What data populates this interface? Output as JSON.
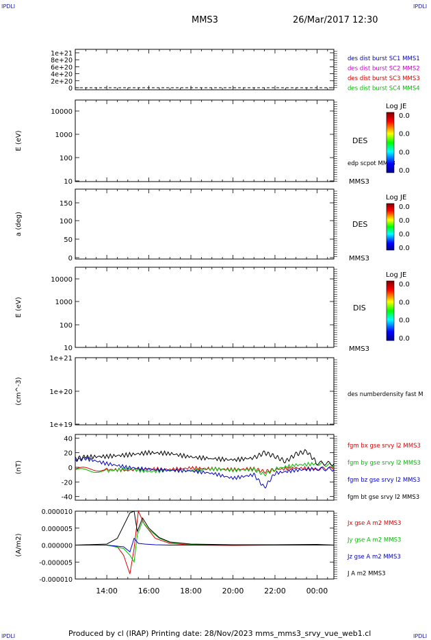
{
  "corner_label": "IPDLI",
  "header": {
    "spacecraft": "MMS3",
    "date": "26/Mar/2017 12:30"
  },
  "footer": {
    "text": "Produced by cl (IRAP)   Printing date: 28/Nov/2023   mms_mms3_srvy_vue_web1.cl"
  },
  "colors": {
    "mms1": "#0000cc",
    "mms2": "#cc00cc",
    "mms3": "#dd0000",
    "mms4": "#00bb00",
    "black": "#000000"
  },
  "colorbar_label": "Log JE",
  "colorbar_ticks": [
    "0.0",
    "0.0",
    "0.0",
    "0.0"
  ],
  "x_axis": {
    "ticks": [
      "14:00",
      "16:00",
      "18:00",
      "20:00",
      "22:00",
      "00:00"
    ]
  },
  "chart_data": [
    {
      "type": "line",
      "panel": "density-dist",
      "yticks": [
        "1e+21",
        "8e+20",
        "6e+20",
        "4e+20",
        "2e+20",
        "0"
      ],
      "legend": [
        "des dist burst SC1 MMS1",
        "des dist burst SC2 MMS2",
        "des dist burst SC3 MMS3",
        "des dist burst SC4 MMS4"
      ]
    },
    {
      "type": "heatmap",
      "panel": "des-energy",
      "ylabel": "E (eV)",
      "yticks": [
        "10000",
        "1000",
        "100",
        "10"
      ],
      "label": "DES",
      "sublabel": "MMS3",
      "overlay": "edp scpot MMS3"
    },
    {
      "type": "heatmap",
      "panel": "des-pitch",
      "ylabel": "a (deg)",
      "yticks": [
        "150",
        "100",
        "50",
        "0"
      ],
      "label": "DES",
      "sublabel": "MMS3"
    },
    {
      "type": "heatmap",
      "panel": "dis-energy",
      "ylabel": "E (eV)",
      "yticks": [
        "10000",
        "1000",
        "100",
        "10"
      ],
      "label": "DIS",
      "sublabel": "MMS3"
    },
    {
      "type": "line",
      "panel": "numberdensity",
      "ylabel": "(cm^-3)",
      "yticks": [
        "1e+21",
        "1e+20",
        "1e+19"
      ],
      "legend": [
        "des numberdensity fast M"
      ]
    },
    {
      "type": "line",
      "panel": "fgm",
      "ylabel": "(nT)",
      "yticks": [
        "40",
        "20",
        "0",
        "-20",
        "-40"
      ],
      "ylim": [
        -45,
        45
      ],
      "legend": [
        "fgm bx gse srvy l2 MMS3",
        "fgm by gse srvy l2 MMS3",
        "fgm bz gse srvy l2 MMS3",
        "fgm bt gse srvy l2 MMS3"
      ],
      "series": [
        {
          "name": "fgm bx gse srvy l2 MMS3",
          "color": "#dd0000",
          "x": [
            12.5,
            14,
            15,
            16,
            17,
            18,
            19,
            20,
            21,
            21.5,
            22,
            23,
            24,
            24.8
          ],
          "y": [
            -2,
            -3,
            -4,
            -2,
            -3,
            -1,
            -2,
            -3,
            -2,
            -6,
            -3,
            -1,
            -2,
            -1
          ]
        },
        {
          "name": "fgm by gse srvy l2 MMS3",
          "color": "#00bb00",
          "x": [
            12.5,
            14,
            15,
            16,
            17,
            18,
            19,
            20,
            21,
            21.5,
            22,
            23,
            24,
            24.8
          ],
          "y": [
            -4,
            -5,
            -2,
            -6,
            -4,
            -5,
            -2,
            -4,
            -3,
            -10,
            -2,
            3,
            5,
            2
          ]
        },
        {
          "name": "fgm bz gse srvy l2 MMS3",
          "color": "#0000cc",
          "x": [
            12.5,
            13,
            14,
            15,
            16,
            17,
            18,
            19,
            20,
            21,
            21.5,
            22,
            23,
            24,
            24.8
          ],
          "y": [
            10,
            12,
            5,
            0,
            -3,
            -4,
            -5,
            -8,
            -15,
            -10,
            -28,
            -8,
            -4,
            -2,
            -3
          ]
        },
        {
          "name": "fgm bt gse srvy l2 MMS3",
          "color": "#000000",
          "x": [
            12.5,
            13,
            14,
            15,
            16,
            17,
            18,
            19,
            20,
            21,
            21.5,
            22,
            22.5,
            23,
            23.5,
            24,
            24.8
          ],
          "y": [
            12,
            14,
            15,
            17,
            20,
            19,
            14,
            12,
            10,
            13,
            20,
            15,
            8,
            18,
            22,
            6,
            5
          ]
        }
      ]
    },
    {
      "type": "line",
      "panel": "current",
      "ylabel": "(A/m2)",
      "yticks": [
        "0.000010",
        "0.000005",
        "0.000000",
        "-0.000005",
        "-0.000010"
      ],
      "ylim": [
        -1e-05,
        1e-05
      ],
      "legend": [
        "Jx gse A m2 MMS3",
        "Jy gse A m2 MMS3",
        "Jz gse A m2 MMS3",
        "J A m2 MMS3"
      ],
      "series": [
        {
          "name": "Jx gse A m2 MMS3",
          "color": "#dd0000",
          "x": [
            12.5,
            14,
            14.5,
            14.8,
            15.1,
            15.3,
            15.5,
            15.8,
            16.3,
            17,
            18,
            20,
            22,
            24,
            24.8
          ],
          "y": [
            0,
            0,
            -5e-07,
            -3e-06,
            -8.5e-06,
            -1e-06,
            1e-05,
            6e-06,
            2e-06,
            5e-07,
            0,
            -1e-07,
            0,
            1e-07,
            0
          ]
        },
        {
          "name": "Jy gse A m2 MMS3",
          "color": "#00bb00",
          "x": [
            12.5,
            14,
            14.8,
            15.1,
            15.3,
            15.45,
            15.7,
            16,
            16.5,
            17,
            18,
            20,
            22,
            24,
            24.8
          ],
          "y": [
            0,
            0,
            -1e-06,
            -3e-06,
            -5e-06,
            3e-06,
            7e-06,
            4.5e-06,
            2e-06,
            8e-07,
            2e-07,
            0,
            0,
            1e-07,
            0
          ]
        },
        {
          "name": "Jz gse A m2 MMS3",
          "color": "#0000cc",
          "x": [
            12.5,
            14,
            14.8,
            15.1,
            15.3,
            15.5,
            15.8,
            16.3,
            17,
            18,
            20,
            22,
            24,
            24.8
          ],
          "y": [
            0,
            0,
            -5e-07,
            -2e-06,
            2e-06,
            5e-07,
            3e-07,
            1e-07,
            0,
            0,
            0,
            0,
            0,
            0
          ]
        },
        {
          "name": "J A m2 MMS3",
          "color": "#000000",
          "x": [
            12.5,
            14,
            14.5,
            14.9,
            15.1,
            15.3,
            15.45,
            15.7,
            16,
            16.5,
            17,
            18,
            20,
            22,
            24,
            24.8
          ],
          "y": [
            0,
            3e-07,
            2e-06,
            7e-06,
            9.5e-06,
            1e-05,
            4e-06,
            8e-06,
            5e-06,
            2.2e-06,
            9e-07,
            3e-07,
            1e-07,
            1e-07,
            2e-07,
            0
          ]
        }
      ]
    }
  ]
}
